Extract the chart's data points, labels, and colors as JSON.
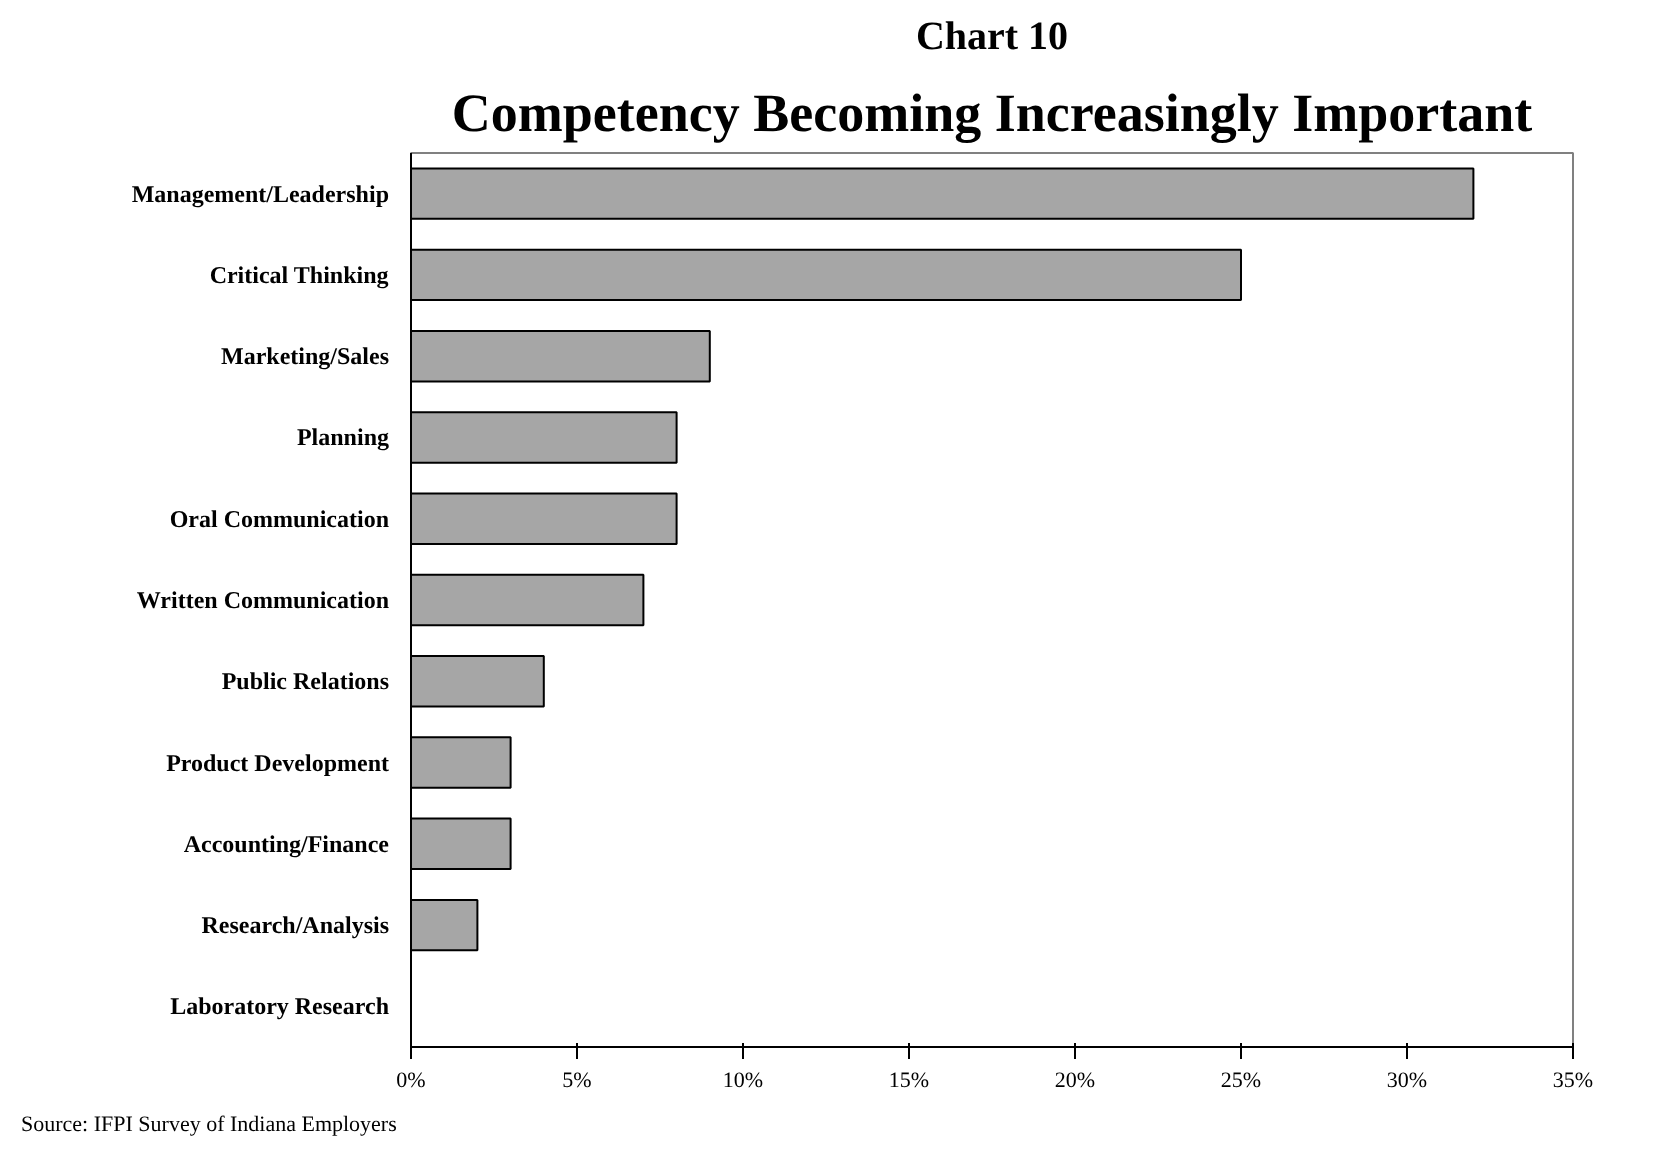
{
  "chart_data": {
    "type": "bar",
    "orientation": "horizontal",
    "title": "Chart 10",
    "subtitle": "Competency Becoming Increasingly Important",
    "categories": [
      "Management/Leadership",
      "Critical Thinking",
      "Marketing/Sales",
      "Planning",
      "Oral Communication",
      "Written Communication",
      "Public Relations",
      "Product Development",
      "Accounting/Finance",
      "Research/Analysis",
      "Laboratory Research"
    ],
    "values": [
      32,
      25,
      9,
      8,
      8,
      7,
      4,
      3,
      3,
      2,
      0
    ],
    "color": "#a6a6a6",
    "xlim": [
      0,
      35
    ],
    "xticks": [
      {
        "value": 0,
        "label": "0%"
      },
      {
        "value": 5,
        "label": "5%"
      },
      {
        "value": 10,
        "label": "10%"
      },
      {
        "value": 15,
        "label": "15%"
      },
      {
        "value": 20,
        "label": "20%"
      },
      {
        "value": 25,
        "label": "25%"
      },
      {
        "value": 30,
        "label": "30%"
      },
      {
        "value": 35,
        "label": "35%"
      }
    ],
    "grid": false,
    "annotations": [
      "Source:  IFPI Survey of Indiana Employers"
    ]
  }
}
